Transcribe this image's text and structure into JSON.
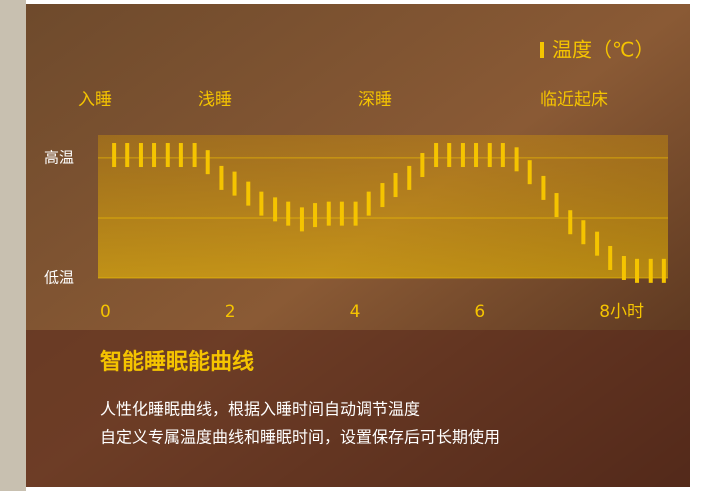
{
  "chart_data": {
    "type": "dash",
    "legend": "温度（℃）",
    "phases": [
      "入睡",
      "浅睡",
      "深睡",
      "临近起床"
    ],
    "title": "智能睡眠能曲线",
    "description": [
      "人性化睡眠曲线，根据入睡时间自动调节温度",
      "自定义专属温度曲线和睡眠时间，设置保存后可长期使用"
    ],
    "series": [
      {
        "name": "温度（℃）",
        "color": "#f5c400",
        "x": [
          0.13,
          0.34,
          0.56,
          0.77,
          0.99,
          1.2,
          1.42,
          1.63,
          1.85,
          2.06,
          2.28,
          2.49,
          2.71,
          2.92,
          3.14,
          3.35,
          3.57,
          3.78,
          4.0,
          4.21,
          4.43,
          4.64,
          4.86,
          5.07,
          5.29,
          5.5,
          5.72,
          5.93,
          6.15,
          6.36,
          6.58,
          6.79,
          7.01,
          7.22,
          7.44,
          7.65,
          7.87,
          8.08,
          8.3,
          8.51,
          8.73,
          8.94
        ],
        "values": [
          8.6,
          8.6,
          8.6,
          8.6,
          8.6,
          8.6,
          8.6,
          8.1,
          7.0,
          6.6,
          5.9,
          5.2,
          4.8,
          4.5,
          4.1,
          4.4,
          4.5,
          4.5,
          4.5,
          5.2,
          5.8,
          6.5,
          7.0,
          7.9,
          8.6,
          8.6,
          8.6,
          8.6,
          8.6,
          8.6,
          8.3,
          7.4,
          6.3,
          5.1,
          3.9,
          3.2,
          2.4,
          1.4,
          0.7,
          0.5,
          0.5,
          0.5
        ]
      }
    ],
    "xlim": [
      0,
      9
    ],
    "xticks": [
      0,
      2,
      4,
      6,
      {
        "value": 8,
        "label": "8小时"
      }
    ],
    "ylim": [
      0,
      10
    ],
    "yticks": [
      {
        "value": 8.4,
        "label": "高温"
      },
      {
        "value": 0,
        "label": "低温"
      }
    ],
    "grid": true
  }
}
